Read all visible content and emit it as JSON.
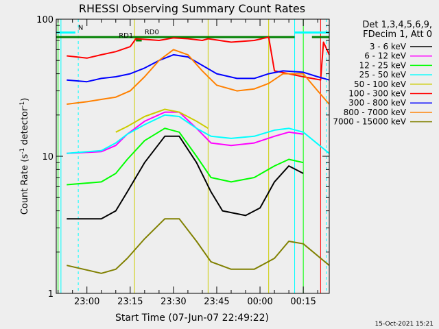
{
  "chart_data": {
    "type": "line",
    "title": "RHESSI Observing Summary Count Rates",
    "xlabel": "Start Time (07-Jun-07 22:49:22)",
    "ylabel": "Count Rate (s⁻¹ detector⁻¹)",
    "ylabel_prefix": "Count Rate (s",
    "ylabel_mid": " detector",
    "ylabel_sup": "-1",
    "ylabel_suffix": ")",
    "yscale": "log",
    "ylim": [
      1,
      100
    ],
    "xlim": [
      "22:49:22",
      "00:24:00"
    ],
    "x_ticks": [
      "23:00",
      "23:15",
      "23:30",
      "23:45",
      "00:00",
      "00:15"
    ],
    "y_ticks": [
      "1",
      "10",
      "100"
    ],
    "footer_date": "15-Oct-2021 15:21",
    "legend": {
      "placement": "right",
      "header": [
        "Det 1,3,4,5,6,9,",
        "FDecim 1, Att 0"
      ],
      "entries": [
        {
          "label": "3 - 6 keV",
          "color": "#000000"
        },
        {
          "label": "6 - 12 keV",
          "color": "#ff00ff"
        },
        {
          "label": "12 - 25 keV",
          "color": "#00ff00"
        },
        {
          "label": "25 - 50 keV",
          "color": "#00ffff"
        },
        {
          "label": "50 - 100 keV",
          "color": "#cccc00"
        },
        {
          "label": "100 - 300 keV",
          "color": "#ff0000"
        },
        {
          "label": "300 - 800 keV",
          "color": "#0000ff"
        },
        {
          "label": "800 - 7000 keV",
          "color": "#ff8000"
        },
        {
          "label": "7000 - 15000 keV",
          "color": "#808000"
        }
      ]
    },
    "flags": [
      {
        "label": "N",
        "color": "#00ffff",
        "y": 80,
        "segments": [
          [
            "22:49:22",
            "22:56:00"
          ],
          [
            "00:12:00",
            "00:24:00"
          ]
        ]
      },
      {
        "label": "RD0",
        "color": "#008000",
        "y": 74,
        "segments": [
          [
            "22:49:22",
            "00:12:00"
          ],
          [
            "00:18:00",
            "00:24:00"
          ]
        ]
      },
      {
        "label": "RD1",
        "color": "#008000",
        "y": 70,
        "segments": [
          [
            "23:17:00",
            "23:19:00"
          ]
        ]
      }
    ],
    "vertical_markers": [
      {
        "time": "22:50:00",
        "color": "#00ff00",
        "style": "solid"
      },
      {
        "time": "22:51:00",
        "color": "#00ffff",
        "style": "solid"
      },
      {
        "time": "22:57:00",
        "color": "#00ffff",
        "style": "dashed"
      },
      {
        "time": "23:16:30",
        "color": "#cccc00",
        "style": "solid"
      },
      {
        "time": "23:42:00",
        "color": "#cccc00",
        "style": "solid"
      },
      {
        "time": "00:03:00",
        "color": "#cccc00",
        "style": "solid"
      },
      {
        "time": "00:12:00",
        "color": "#00ffff",
        "style": "solid"
      },
      {
        "time": "00:15:00",
        "color": "#00ff00",
        "style": "solid"
      },
      {
        "time": "00:21:00",
        "color": "#ff0000",
        "style": "solid"
      },
      {
        "time": "00:23:00",
        "color": "#00ffff",
        "style": "dashed"
      }
    ],
    "series": [
      {
        "name": "3 - 6 keV",
        "color": "#000000",
        "x": [
          "22:53:00",
          "23:05:00",
          "23:10:00",
          "23:14:00",
          "23:20:00",
          "23:27:00",
          "23:32:00",
          "23:38:00",
          "23:43:00",
          "23:47:00",
          "23:55:00",
          "00:00:00",
          "00:05:00",
          "00:10:00",
          "00:15:00"
        ],
        "y": [
          3.5,
          3.5,
          4.0,
          5.5,
          9.0,
          14.0,
          14.0,
          9.0,
          5.5,
          4.0,
          3.7,
          4.2,
          6.5,
          8.5,
          7.5
        ]
      },
      {
        "name": "6 - 12 keV",
        "color": "#ff00ff",
        "x": [
          "22:53:00",
          "23:05:00",
          "23:10:00",
          "23:14:00",
          "23:20:00",
          "23:27:00",
          "23:32:00",
          "23:38:00",
          "23:43:00",
          "23:50:00",
          "23:58:00",
          "00:05:00",
          "00:10:00",
          "00:15:00"
        ],
        "y": [
          10.5,
          10.8,
          12.0,
          14.5,
          18.0,
          21.0,
          21.0,
          16.0,
          12.5,
          12.0,
          12.5,
          14.0,
          15.0,
          14.5
        ]
      },
      {
        "name": "12 - 25 keV",
        "color": "#00ff00",
        "x": [
          "22:53:00",
          "23:05:00",
          "23:10:00",
          "23:14:00",
          "23:20:00",
          "23:27:00",
          "23:32:00",
          "23:38:00",
          "23:43:00",
          "23:50:00",
          "23:58:00",
          "00:05:00",
          "00:10:00",
          "00:15:00"
        ],
        "y": [
          6.2,
          6.5,
          7.5,
          9.5,
          13.0,
          16.0,
          15.0,
          10.0,
          7.0,
          6.5,
          7.0,
          8.5,
          9.5,
          9.0
        ]
      },
      {
        "name": "25 - 50 keV",
        "color": "#00ffff",
        "x": [
          "22:53:00",
          "23:05:00",
          "23:10:00",
          "23:14:00",
          "23:20:00",
          "23:27:00",
          "23:32:00",
          "23:38:00",
          "23:43:00",
          "23:50:00",
          "23:58:00",
          "00:05:00",
          "00:10:00",
          "00:15:00",
          "00:24:00"
        ],
        "y": [
          10.5,
          11.0,
          12.5,
          14.5,
          17.0,
          20.0,
          19.5,
          16.0,
          14.0,
          13.5,
          14.0,
          15.5,
          16.0,
          15.0,
          10.5
        ]
      },
      {
        "name": "50 - 100 keV",
        "color": "#cccc00",
        "x": [
          "23:10:00",
          "23:14:00",
          "23:20:00",
          "23:27:00",
          "23:32:00",
          "23:38:00",
          "23:42:00"
        ],
        "y": [
          15.0,
          16.5,
          19.5,
          22.0,
          21.0,
          18.0,
          16.0
        ]
      },
      {
        "name": "100 - 300 keV",
        "color": "#ff0000",
        "x": [
          "22:53:00",
          "23:00:00",
          "23:05:00",
          "23:10:00",
          "23:15:00",
          "23:17:00",
          "23:25:00",
          "23:30:00",
          "23:35:00",
          "23:40:00",
          "23:42:00",
          "23:50:00",
          "23:58:00",
          "00:03:00",
          "00:05:00",
          "00:10:00",
          "00:15:00",
          "00:21:00",
          "00:22:00",
          "00:24:00"
        ],
        "y": [
          54,
          52,
          55,
          58,
          63,
          72,
          70,
          73,
          72,
          70,
          72,
          68,
          70,
          74,
          42,
          40,
          38,
          36,
          68,
          55
        ]
      },
      {
        "name": "300 - 800 keV",
        "color": "#0000ff",
        "x": [
          "22:53:00",
          "23:00:00",
          "23:05:00",
          "23:10:00",
          "23:15:00",
          "23:20:00",
          "23:25:00",
          "23:30:00",
          "23:35:00",
          "23:40:00",
          "23:45:00",
          "23:52:00",
          "23:58:00",
          "00:03:00",
          "00:08:00",
          "00:15:00",
          "00:20:00",
          "00:24:00"
        ],
        "y": [
          36,
          35,
          37,
          38,
          40,
          44,
          50,
          55,
          53,
          46,
          40,
          37,
          37,
          40,
          42,
          41,
          38,
          36
        ]
      },
      {
        "name": "800 - 7000 keV",
        "color": "#ff8000",
        "x": [
          "22:53:00",
          "23:00:00",
          "23:05:00",
          "23:10:00",
          "23:15:00",
          "23:20:00",
          "23:25:00",
          "23:30:00",
          "23:35:00",
          "23:40:00",
          "23:45:00",
          "23:52:00",
          "23:58:00",
          "00:03:00",
          "00:08:00",
          "00:15:00",
          "00:20:00",
          "00:24:00"
        ],
        "y": [
          24,
          25,
          26,
          27,
          30,
          38,
          50,
          60,
          55,
          42,
          33,
          30,
          31,
          34,
          40,
          40,
          30,
          24
        ]
      },
      {
        "name": "7000 - 15000 keV",
        "color": "#808000",
        "x": [
          "22:53:00",
          "23:05:00",
          "23:10:00",
          "23:14:00",
          "23:20:00",
          "23:27:00",
          "23:32:00",
          "23:38:00",
          "23:43:00",
          "23:50:00",
          "23:58:00",
          "00:05:00",
          "00:10:00",
          "00:15:00",
          "00:24:00"
        ],
        "y": [
          1.6,
          1.4,
          1.5,
          1.8,
          2.5,
          3.5,
          3.5,
          2.4,
          1.7,
          1.5,
          1.5,
          1.8,
          2.4,
          2.3,
          1.6
        ]
      }
    ]
  }
}
